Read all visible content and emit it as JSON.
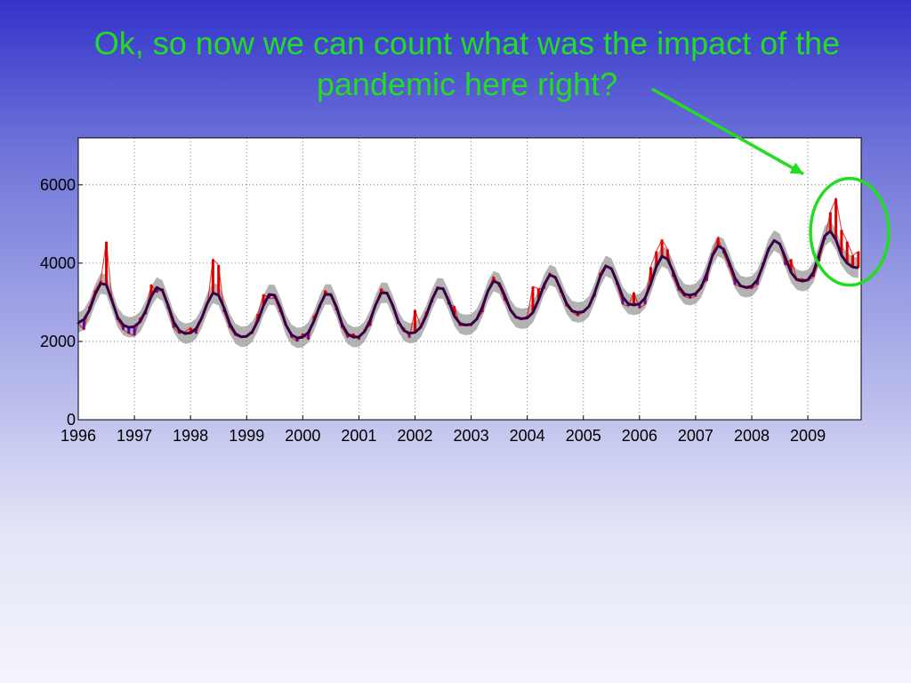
{
  "slide": {
    "title": "Ok, so now we can count what was the impact of the pandemic here right?"
  },
  "colors": {
    "title": "#22dd22",
    "annotation": "#22dd22",
    "observed": "#dd0000",
    "observed_low": "#4411bb",
    "envelope": "#999999",
    "baseline": "#3a0044"
  },
  "chart_data": {
    "type": "line",
    "title": "",
    "xlabel": "",
    "ylabel": "",
    "xlim": [
      1996,
      2009.95
    ],
    "ylim": [
      0,
      7200
    ],
    "x_ticks": [
      "1996",
      "1997",
      "1998",
      "1999",
      "2000",
      "2001",
      "2002",
      "2003",
      "2004",
      "2005",
      "2006",
      "2007",
      "2008",
      "2009"
    ],
    "y_ticks": [
      "0",
      "2000",
      "4000",
      "6000"
    ],
    "grid": true,
    "legend": "none",
    "series": [
      {
        "type": "seasonal-baseline",
        "x": [
          1996.0,
          1996.1,
          1996.2,
          1996.3,
          1996.4,
          1996.5,
          1996.6,
          1996.7,
          1996.8,
          1996.9,
          1997.0,
          1997.1,
          1997.2,
          1997.3,
          1997.4,
          1997.5,
          1997.6,
          1997.7,
          1997.8,
          1997.9,
          1998.0,
          1998.1,
          1998.2,
          1998.3,
          1998.4,
          1998.5,
          1998.6,
          1998.7,
          1998.8,
          1998.9,
          1999.0,
          1999.1,
          1999.2,
          1999.3,
          1999.4,
          1999.5,
          1999.6,
          1999.7,
          1999.8,
          1999.9,
          2000.0,
          2000.1,
          2000.2,
          2000.3,
          2000.4,
          2000.5,
          2000.6,
          2000.7,
          2000.8,
          2000.9,
          2001.0,
          2001.1,
          2001.2,
          2001.3,
          2001.4,
          2001.5,
          2001.6,
          2001.7,
          2001.8,
          2001.9,
          2002.0,
          2002.1,
          2002.2,
          2002.3,
          2002.4,
          2002.5,
          2002.6,
          2002.7,
          2002.8,
          2002.9,
          2003.0,
          2003.1,
          2003.2,
          2003.3,
          2003.4,
          2003.5,
          2003.6,
          2003.7,
          2003.8,
          2003.9,
          2004.0,
          2004.1,
          2004.2,
          2004.3,
          2004.4,
          2004.5,
          2004.6,
          2004.7,
          2004.8,
          2004.9,
          2005.0,
          2005.1,
          2005.2,
          2005.3,
          2005.4,
          2005.5,
          2005.6,
          2005.7,
          2005.8,
          2005.9,
          2006.0,
          2006.1,
          2006.2,
          2006.3,
          2006.4,
          2006.5,
          2006.6,
          2006.7,
          2006.8,
          2006.9,
          2007.0,
          2007.1,
          2007.2,
          2007.3,
          2007.4,
          2007.5,
          2007.6,
          2007.7,
          2007.8,
          2007.9,
          2008.0,
          2008.1,
          2008.2,
          2008.3,
          2008.4,
          2008.5,
          2008.6,
          2008.7,
          2008.8,
          2008.9,
          2009.0,
          2009.1,
          2009.2,
          2009.3,
          2009.4,
          2009.5,
          2009.6,
          2009.7,
          2009.8,
          2009.9
        ],
        "y": [
          2480,
          2560,
          2800,
          3200,
          3480,
          3450,
          3050,
          2620,
          2420,
          2360,
          2380,
          2500,
          2780,
          3150,
          3380,
          3300,
          2920,
          2500,
          2280,
          2200,
          2220,
          2330,
          2600,
          2980,
          3240,
          3180,
          2850,
          2450,
          2200,
          2120,
          2130,
          2250,
          2530,
          2920,
          3200,
          3180,
          2850,
          2420,
          2170,
          2090,
          2110,
          2230,
          2520,
          2910,
          3200,
          3200,
          2880,
          2440,
          2190,
          2110,
          2120,
          2250,
          2540,
          2940,
          3240,
          3240,
          2930,
          2520,
          2280,
          2210,
          2230,
          2360,
          2660,
          3060,
          3360,
          3350,
          3040,
          2650,
          2460,
          2420,
          2440,
          2570,
          2880,
          3290,
          3540,
          3480,
          3170,
          2810,
          2620,
          2580,
          2600,
          2740,
          3060,
          3450,
          3700,
          3640,
          3320,
          2970,
          2780,
          2740,
          2760,
          2900,
          3240,
          3660,
          3930,
          3860,
          3520,
          3140,
          2960,
          2930,
          2960,
          3110,
          3470,
          3910,
          4180,
          4100,
          3780,
          3400,
          3210,
          3180,
          3220,
          3380,
          3740,
          4190,
          4440,
          4360,
          4010,
          3620,
          3420,
          3380,
          3410,
          3570,
          3940,
          4360,
          4580,
          4490,
          4140,
          3770,
          3580,
          3540,
          3570,
          3770,
          4220,
          4690,
          4820,
          4600,
          4200,
          4000,
          3900,
          3880
        ]
      },
      {
        "type": "observed",
        "x": [
          1996.0,
          1996.1,
          1996.2,
          1996.3,
          1996.4,
          1996.5,
          1996.6,
          1996.7,
          1996.8,
          1996.9,
          1997.0,
          1997.1,
          1997.2,
          1997.3,
          1997.4,
          1997.5,
          1997.6,
          1997.7,
          1997.8,
          1997.9,
          1998.0,
          1998.1,
          1998.2,
          1998.3,
          1998.4,
          1998.5,
          1998.6,
          1998.7,
          1998.8,
          1998.9,
          1999.0,
          1999.1,
          1999.2,
          1999.3,
          1999.4,
          1999.5,
          1999.6,
          1999.7,
          1999.8,
          1999.9,
          2000.0,
          2000.1,
          2000.2,
          2000.3,
          2000.4,
          2000.5,
          2000.6,
          2000.7,
          2000.8,
          2000.9,
          2001.0,
          2001.1,
          2001.2,
          2001.3,
          2001.4,
          2001.5,
          2001.6,
          2001.7,
          2001.8,
          2001.9,
          2002.0,
          2002.1,
          2002.2,
          2002.3,
          2002.4,
          2002.5,
          2002.6,
          2002.7,
          2002.8,
          2002.9,
          2003.0,
          2003.1,
          2003.2,
          2003.3,
          2003.4,
          2003.5,
          2003.6,
          2003.7,
          2003.8,
          2003.9,
          2004.0,
          2004.1,
          2004.2,
          2004.3,
          2004.4,
          2004.5,
          2004.6,
          2004.7,
          2004.8,
          2004.9,
          2005.0,
          2005.1,
          2005.2,
          2005.3,
          2005.4,
          2005.5,
          2005.6,
          2005.7,
          2005.8,
          2005.9,
          2006.0,
          2006.1,
          2006.2,
          2006.3,
          2006.4,
          2006.5,
          2006.6,
          2006.7,
          2006.8,
          2006.9,
          2007.0,
          2007.1,
          2007.2,
          2007.3,
          2007.4,
          2007.5,
          2007.6,
          2007.7,
          2007.8,
          2007.9,
          2008.0,
          2008.1,
          2008.2,
          2008.3,
          2008.4,
          2008.5,
          2008.6,
          2008.7,
          2008.8,
          2008.9,
          2009.0,
          2009.1,
          2009.2,
          2009.3,
          2009.4,
          2009.5,
          2009.6,
          2009.7,
          2009.8,
          2009.9
        ],
        "y": [
          2450,
          2300,
          2900,
          3300,
          3550,
          4550,
          3100,
          2550,
          2300,
          2200,
          2150,
          2600,
          2700,
          3450,
          3250,
          3350,
          2850,
          2350,
          2200,
          2250,
          2350,
          2200,
          2600,
          2950,
          4100,
          3950,
          2750,
          2350,
          2150,
          2100,
          2150,
          2200,
          2700,
          3200,
          3100,
          3100,
          2750,
          2450,
          2100,
          2000,
          2200,
          2050,
          2650,
          2850,
          3300,
          3150,
          2800,
          2350,
          2100,
          2200,
          2050,
          2300,
          2400,
          2950,
          3350,
          3200,
          2900,
          2450,
          2350,
          2100,
          2800,
          2400,
          2750,
          3000,
          3400,
          3350,
          2950,
          2900,
          2400,
          2400,
          2400,
          2550,
          2750,
          3300,
          3650,
          3400,
          3050,
          2800,
          2600,
          2550,
          2650,
          3400,
          3350,
          3350,
          3750,
          3600,
          3250,
          2900,
          2750,
          2650,
          2750,
          2900,
          3150,
          3750,
          3950,
          3850,
          3450,
          2950,
          2900,
          3250,
          2850,
          2950,
          3900,
          4300,
          4600,
          4350,
          3650,
          3300,
          3150,
          3100,
          3150,
          3450,
          3550,
          4250,
          4650,
          4250,
          3900,
          3450,
          3400,
          3350,
          3350,
          3450,
          4000,
          4300,
          4600,
          4500,
          3950,
          4100,
          3600,
          3600,
          3550,
          3650,
          4050,
          4600,
          5300,
          5650,
          4850,
          4550,
          4200,
          4300
        ]
      }
    ],
    "annotation": {
      "type": "arrow-and-ellipse",
      "target_x": 2009.65,
      "target_y": 4800
    }
  }
}
